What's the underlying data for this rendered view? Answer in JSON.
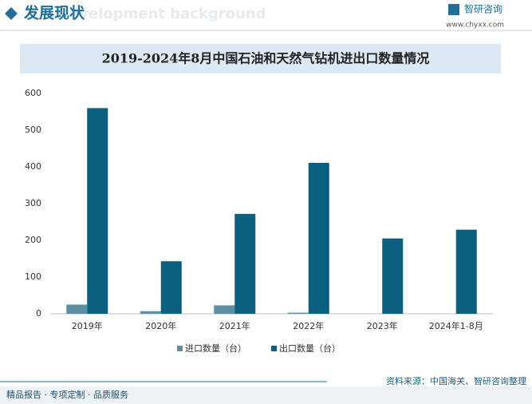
{
  "header": {
    "title": "发展现状",
    "watermark": "Development background",
    "brand": "智研咨询",
    "url": "www.chyxx.com"
  },
  "chart_data": {
    "type": "bar",
    "title": "2019-2024年8月中国石油和天然气钻机进出口数量情况",
    "categories": [
      "2019年",
      "2020年",
      "2021年",
      "2022年",
      "2023年",
      "2024年1-8月"
    ],
    "series": [
      {
        "name": "进口数量（台）",
        "color": "#5b8fa3",
        "values": [
          25,
          7,
          23,
          3,
          0,
          0
        ]
      },
      {
        "name": "出口数量（台）",
        "color": "#0b5f7f",
        "values": [
          560,
          143,
          272,
          411,
          205,
          229
        ]
      }
    ],
    "ylim": [
      0,
      600
    ],
    "yticks": [
      0,
      100,
      200,
      300,
      400,
      500,
      600
    ],
    "grid": false,
    "source": "资料来源：中国海关、智研咨询整理"
  },
  "footer": "精品报告 · 专项定制 · 品质服务"
}
